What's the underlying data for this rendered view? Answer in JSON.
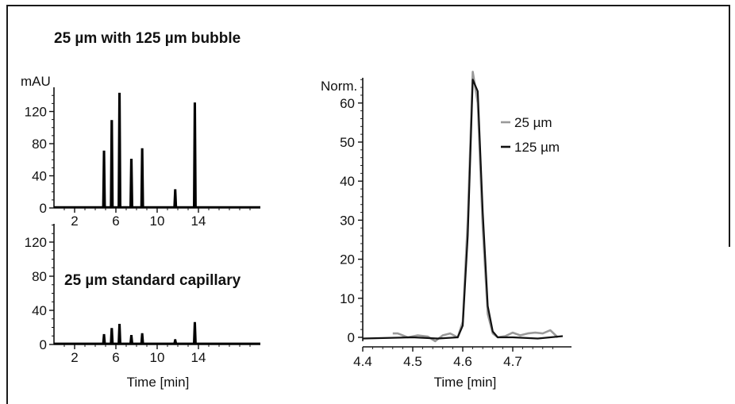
{
  "figure_title": "25 µm with 125 µm bubble",
  "chart_data": [
    {
      "type": "line",
      "title": "25 µm with 125 µm bubble",
      "ylabel": "mAU",
      "xlabel": "",
      "xlim": [
        0,
        20
      ],
      "ylim": [
        0,
        145
      ],
      "x_ticks": [
        2,
        6,
        10,
        14
      ],
      "y_ticks": [
        0,
        40,
        80,
        120
      ],
      "color": "#000000",
      "series": [
        {
          "peaks": [
            {
              "x": 4.85,
              "y": 70
            },
            {
              "x": 5.6,
              "y": 108
            },
            {
              "x": 6.35,
              "y": 142
            },
            {
              "x": 7.5,
              "y": 60
            },
            {
              "x": 8.55,
              "y": 73
            },
            {
              "x": 11.75,
              "y": 22
            },
            {
              "x": 13.65,
              "y": 130
            }
          ],
          "baseline": 1
        }
      ]
    },
    {
      "type": "line",
      "title": "25 µm standard capillary",
      "ylabel": "",
      "xlabel": "Time [min]",
      "xlim": [
        0,
        20
      ],
      "ylim": [
        0,
        145
      ],
      "x_ticks": [
        2,
        6,
        10,
        14
      ],
      "y_ticks": [
        0,
        40,
        80,
        120
      ],
      "color": "#000000",
      "series": [
        {
          "peaks": [
            {
              "x": 4.85,
              "y": 11
            },
            {
              "x": 5.6,
              "y": 18
            },
            {
              "x": 6.35,
              "y": 23
            },
            {
              "x": 7.5,
              "y": 10
            },
            {
              "x": 8.55,
              "y": 12
            },
            {
              "x": 11.75,
              "y": 5
            },
            {
              "x": 13.65,
              "y": 25
            }
          ],
          "baseline": 1
        }
      ]
    },
    {
      "type": "line",
      "title": "",
      "ylabel": "Norm.",
      "xlabel": "Time [min]",
      "xlim": [
        4.4,
        4.8
      ],
      "ylim": [
        -1,
        70
      ],
      "x_ticks": [
        4.4,
        4.5,
        4.6,
        4.7
      ],
      "y_ticks": [
        0,
        10,
        20,
        30,
        40,
        50,
        60
      ],
      "legend_position": "top-right",
      "series": [
        {
          "name": "25 µm",
          "color": "#999999",
          "x": [
            4.46,
            4.47,
            4.49,
            4.51,
            4.53,
            4.545,
            4.56,
            4.575,
            4.59,
            4.6,
            4.61,
            4.62,
            4.63,
            4.64,
            4.65,
            4.66,
            4.67,
            4.685,
            4.7,
            4.715,
            4.73,
            4.745,
            4.76,
            4.775,
            4.79
          ],
          "y": [
            1,
            1,
            0,
            0.5,
            0.2,
            -1,
            0.5,
            1,
            0,
            4,
            30,
            68,
            60,
            28,
            6,
            1,
            0,
            0.3,
            1.2,
            0.5,
            1,
            1.2,
            1,
            1.8,
            0
          ]
        },
        {
          "name": "125 µm",
          "color": "#111111",
          "x": [
            4.4,
            4.5,
            4.55,
            4.59,
            4.6,
            4.61,
            4.62,
            4.63,
            4.64,
            4.65,
            4.66,
            4.67,
            4.7,
            4.75,
            4.8
          ],
          "y": [
            -0.3,
            0,
            -0.3,
            0,
            3,
            26,
            66,
            63,
            32,
            8,
            1.5,
            0,
            0,
            -0.3,
            0.3
          ]
        }
      ]
    }
  ]
}
